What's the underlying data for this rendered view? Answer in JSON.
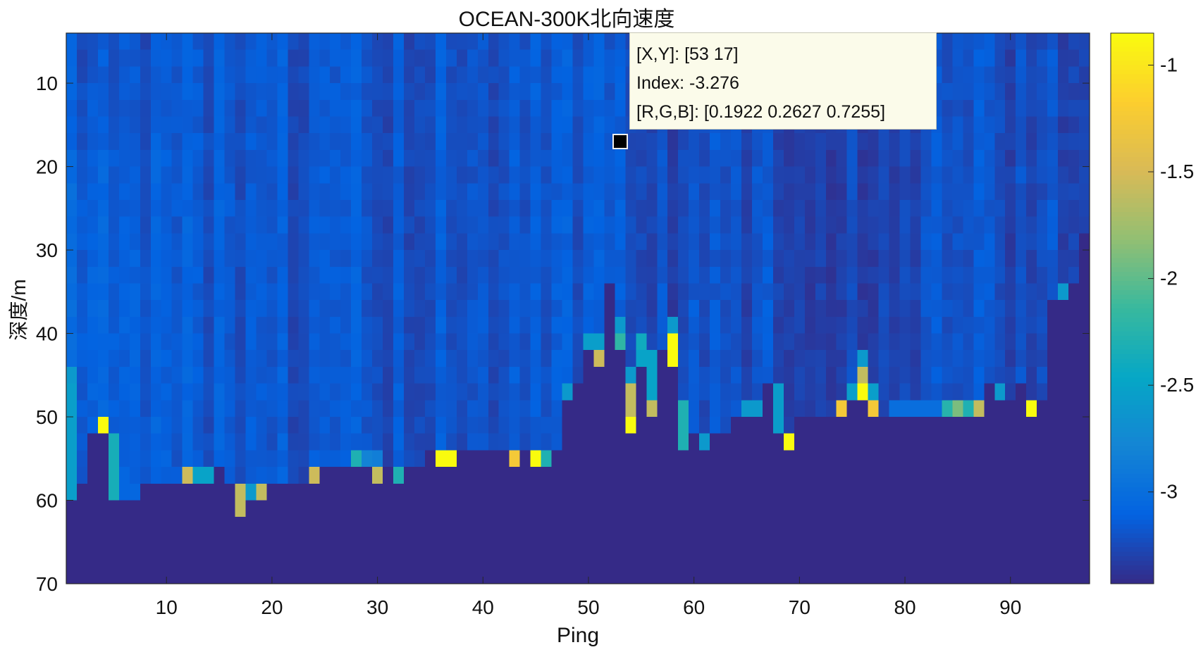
{
  "chart_data": {
    "type": "heatmap",
    "title": "OCEAN-300K北向速度",
    "xlabel": "Ping",
    "ylabel": "深度/m",
    "x_range": [
      1,
      97
    ],
    "xlim": [
      0.5,
      97.5
    ],
    "depth_bin_edges": {
      "start": 4,
      "end": 70,
      "step": 2
    },
    "ylim": [
      4,
      70
    ],
    "y_reversed": true,
    "xticks": [
      10,
      20,
      30,
      40,
      50,
      60,
      70,
      80,
      90
    ],
    "yticks": [
      10,
      20,
      30,
      40,
      50,
      60,
      70
    ],
    "colormap": "parula",
    "clim": [
      -3.43,
      -0.85
    ],
    "colorbar_ticks": [
      -1,
      -1.5,
      -2,
      -2.5,
      -3
    ],
    "no_data_value": -3.43,
    "background": {
      "mean": -3.2,
      "column_spread": 0.2,
      "cell_spread": 0.1
    },
    "bottom_depth": [
      60,
      58,
      52,
      52,
      60,
      60,
      60,
      58,
      58,
      58,
      58,
      58,
      58,
      58,
      56,
      58,
      62,
      60,
      60,
      58,
      58,
      58,
      58,
      58,
      56,
      56,
      56,
      56,
      56,
      58,
      56,
      58,
      56,
      56,
      54,
      56,
      56,
      54,
      54,
      54,
      54,
      54,
      56,
      54,
      56,
      56,
      54,
      48,
      46,
      42,
      44,
      34,
      42,
      52,
      44,
      50,
      42,
      44,
      54,
      52,
      54,
      52,
      52,
      50,
      50,
      50,
      46,
      52,
      54,
      50,
      50,
      50,
      50,
      50,
      48,
      48,
      50,
      50,
      50,
      50,
      50,
      50,
      50,
      50,
      50,
      50,
      50,
      46,
      48,
      48,
      46,
      50,
      48,
      36,
      36,
      34,
      28
    ],
    "anomalies": [
      [
        1,
        45,
        -2.6
      ],
      [
        1,
        47,
        -2.55
      ],
      [
        1,
        49,
        -2.55
      ],
      [
        1,
        51,
        -2.55
      ],
      [
        1,
        53,
        -2.55
      ],
      [
        1,
        55,
        -2.55
      ],
      [
        1,
        57,
        -2.55
      ],
      [
        1,
        59,
        -2.55
      ],
      [
        4,
        51,
        -0.85
      ],
      [
        5,
        53,
        -2.35
      ],
      [
        5,
        55,
        -2.35
      ],
      [
        5,
        57,
        -2.35
      ],
      [
        5,
        59,
        -2.35
      ],
      [
        12,
        57,
        -1.55
      ],
      [
        13,
        57,
        -2.5
      ],
      [
        14,
        57,
        -2.5
      ],
      [
        17,
        59,
        -1.6
      ],
      [
        17,
        61,
        -1.6
      ],
      [
        18,
        59,
        -2.6
      ],
      [
        19,
        59,
        -1.6
      ],
      [
        24,
        57,
        -1.55
      ],
      [
        28,
        55,
        -2.3
      ],
      [
        29,
        55,
        -2.8
      ],
      [
        30,
        55,
        -2.85
      ],
      [
        30,
        57,
        -1.6
      ],
      [
        32,
        57,
        -2.3
      ],
      [
        36,
        55,
        -0.85
      ],
      [
        37,
        55,
        -0.85
      ],
      [
        43,
        55,
        -1.25
      ],
      [
        45,
        55,
        -0.85
      ],
      [
        46,
        55,
        -2.3
      ],
      [
        48,
        47,
        -2.6
      ],
      [
        50,
        41,
        -2.55
      ],
      [
        51,
        41,
        -2.55
      ],
      [
        51,
        43,
        -1.55
      ],
      [
        53,
        39,
        -2.6
      ],
      [
        53,
        41,
        -2.2
      ],
      [
        54,
        45,
        -2.6
      ],
      [
        54,
        47,
        -1.6
      ],
      [
        54,
        49,
        -1.6
      ],
      [
        54,
        51,
        -0.85
      ],
      [
        55,
        41,
        -2.4
      ],
      [
        55,
        43,
        -2.5
      ],
      [
        56,
        43,
        -2.5
      ],
      [
        56,
        45,
        -2.5
      ],
      [
        56,
        47,
        -2.5
      ],
      [
        56,
        49,
        -1.6
      ],
      [
        58,
        39,
        -2.6
      ],
      [
        58,
        41,
        -0.85
      ],
      [
        58,
        43,
        -0.85
      ],
      [
        59,
        49,
        -2.3
      ],
      [
        59,
        51,
        -2.3
      ],
      [
        59,
        53,
        -2.3
      ],
      [
        61,
        53,
        -2.6
      ],
      [
        65,
        49,
        -2.6
      ],
      [
        66,
        49,
        -2.6
      ],
      [
        68,
        47,
        -2.55
      ],
      [
        68,
        49,
        -2.55
      ],
      [
        68,
        51,
        -2.55
      ],
      [
        69,
        53,
        -0.85
      ],
      [
        74,
        49,
        -1.25
      ],
      [
        75,
        47,
        -2.55
      ],
      [
        76,
        43,
        -2.6
      ],
      [
        76,
        45,
        -1.6
      ],
      [
        76,
        47,
        -0.85
      ],
      [
        77,
        47,
        -2.55
      ],
      [
        77,
        49,
        -1.25
      ],
      [
        79,
        49,
        -3.0
      ],
      [
        80,
        49,
        -3.0
      ],
      [
        81,
        49,
        -3.0
      ],
      [
        82,
        49,
        -3.0
      ],
      [
        83,
        49,
        -3.0
      ],
      [
        84,
        49,
        -2.25
      ],
      [
        85,
        49,
        -1.9
      ],
      [
        86,
        49,
        -2.3
      ],
      [
        87,
        49,
        -1.6
      ],
      [
        89,
        47,
        -2.6
      ],
      [
        92,
        49,
        -0.85
      ],
      [
        95,
        35,
        -2.6
      ]
    ]
  },
  "datatip": {
    "xy": "[X,Y]: [53 17]",
    "index": "Index: -3.276",
    "rgb": "[R,G,B]: [0.1922 0.2627 0.7255]",
    "point": [
      53,
      17
    ]
  }
}
